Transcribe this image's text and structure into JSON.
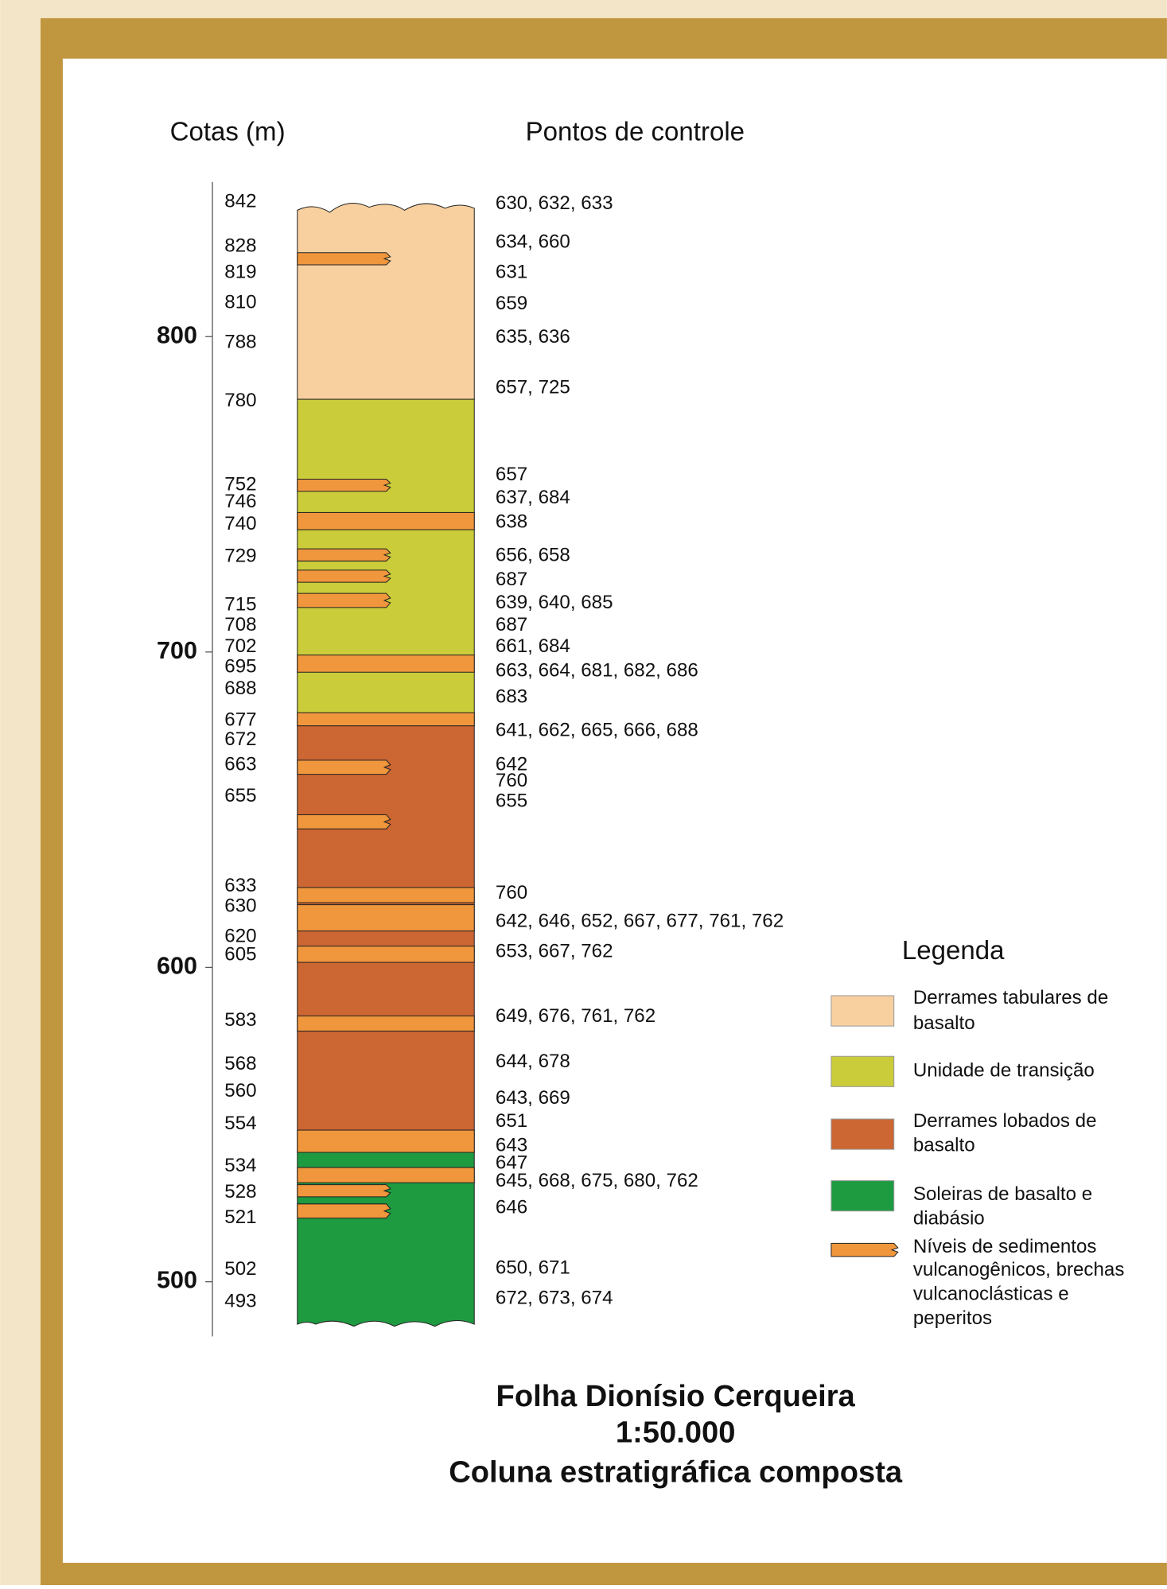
{
  "header": {
    "left": "Cotas (m)",
    "right": "Pontos de controle"
  },
  "axis_ticks": [
    "800",
    "700",
    "600",
    "500"
  ],
  "elevations": [
    "842",
    "828",
    "819",
    "810",
    "788",
    "780",
    "752",
    "746",
    "740",
    "729",
    "715",
    "708",
    "702",
    "695",
    "688",
    "677",
    "672",
    "663",
    "655",
    "633",
    "630",
    "620",
    "605",
    "583",
    "568",
    "560",
    "554",
    "534",
    "528",
    "521",
    "502",
    "493"
  ],
  "control_points": [
    "630, 632, 633",
    "634, 660",
    "631",
    "659",
    "635, 636",
    "657, 725",
    "657",
    "637, 684",
    "638",
    "656, 658",
    "687",
    "639, 640, 685",
    "687",
    "661, 684",
    "663, 664, 681, 682, 686",
    "683",
    "641, 662, 665, 666, 688",
    "642",
    "760",
    "655",
    "760",
    "642, 646, 652, 667, 677, 761, 762",
    "653, 667, 762",
    "649, 676, 761, 762",
    "644, 678",
    "643, 669",
    "651",
    "643",
    "647",
    "645, 668, 675, 680, 762",
    "646",
    "650, 671",
    "672, 673, 674"
  ],
  "legend": {
    "title": "Legenda",
    "items": [
      {
        "lines": [
          "Derrames tabulares de",
          "basalto"
        ]
      },
      {
        "lines": [
          "Unidade de transição"
        ]
      },
      {
        "lines": [
          "Derrames lobados de",
          "basalto"
        ]
      },
      {
        "lines": [
          "Soleiras de basalto e",
          "diabásio"
        ]
      },
      {
        "lines": [
          "Níveis de sedimentos",
          "vulcanogênicos, brechas",
          "vulcanoclásticas e",
          "peperitos"
        ]
      }
    ]
  },
  "title": [
    "Folha Dionísio Cerqueira",
    "1:50.000",
    "Coluna estratigráfica composta"
  ]
}
